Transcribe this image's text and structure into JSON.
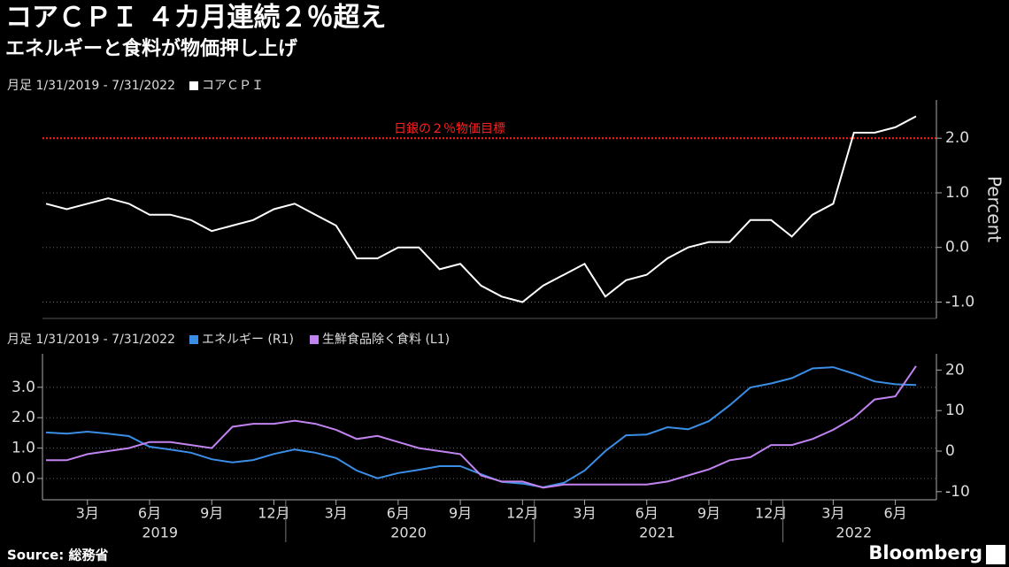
{
  "title": "コアＣＰＩ ４カ月連続２％超え",
  "subtitle": "エネルギーと食料が物価押し上げ",
  "source": "Source: 総務省",
  "brand": "Bloomberg",
  "chart_data": [
    {
      "type": "line",
      "range_label": "月足 1/31/2019 - 7/31/2022",
      "ylabel": "Percent",
      "x": [
        "2019-01",
        "2019-02",
        "2019-03",
        "2019-04",
        "2019-05",
        "2019-06",
        "2019-07",
        "2019-08",
        "2019-09",
        "2019-10",
        "2019-11",
        "2019-12",
        "2020-01",
        "2020-02",
        "2020-03",
        "2020-04",
        "2020-05",
        "2020-06",
        "2020-07",
        "2020-08",
        "2020-09",
        "2020-10",
        "2020-11",
        "2020-12",
        "2021-01",
        "2021-02",
        "2021-03",
        "2021-04",
        "2021-05",
        "2021-06",
        "2021-07",
        "2021-08",
        "2021-09",
        "2021-10",
        "2021-11",
        "2021-12",
        "2022-01",
        "2022-02",
        "2022-03",
        "2022-04",
        "2022-05",
        "2022-06",
        "2022-07"
      ],
      "series": [
        {
          "name": "コアＣＰＩ",
          "color": "#ffffff",
          "values": [
            0.8,
            0.7,
            0.8,
            0.9,
            0.8,
            0.6,
            0.6,
            0.5,
            0.3,
            0.4,
            0.5,
            0.7,
            0.8,
            0.6,
            0.4,
            -0.2,
            -0.2,
            0.0,
            0.0,
            -0.4,
            -0.3,
            -0.7,
            -0.9,
            -1.0,
            -0.7,
            -0.5,
            -0.3,
            -0.9,
            -0.6,
            -0.5,
            -0.2,
            0.0,
            0.1,
            0.1,
            0.5,
            0.5,
            0.2,
            0.6,
            0.8,
            2.1,
            2.1,
            2.2,
            2.4
          ]
        }
      ],
      "y2lim": [
        -1.3,
        2.7
      ],
      "y2ticks": [
        {
          "value": 2,
          "label": "2.0"
        },
        {
          "value": 1,
          "label": "1.0"
        },
        {
          "value": 0,
          "label": "0.0"
        },
        {
          "value": -1,
          "label": "-1.0"
        }
      ],
      "grid": true,
      "target": {
        "value": 2,
        "label": "日銀の２％物価目標",
        "color": "#ff2020"
      }
    },
    {
      "type": "line",
      "range_label": "月足 1/31/2019 - 7/31/2022",
      "x": [
        "2019-01",
        "2019-02",
        "2019-03",
        "2019-04",
        "2019-05",
        "2019-06",
        "2019-07",
        "2019-08",
        "2019-09",
        "2019-10",
        "2019-11",
        "2019-12",
        "2020-01",
        "2020-02",
        "2020-03",
        "2020-04",
        "2020-05",
        "2020-06",
        "2020-07",
        "2020-08",
        "2020-09",
        "2020-10",
        "2020-11",
        "2020-12",
        "2021-01",
        "2021-02",
        "2021-03",
        "2021-04",
        "2021-05",
        "2021-06",
        "2021-07",
        "2021-08",
        "2021-09",
        "2021-10",
        "2021-11",
        "2021-12",
        "2022-01",
        "2022-02",
        "2022-03",
        "2022-04",
        "2022-05",
        "2022-06",
        "2022-07"
      ],
      "series": [
        {
          "name": "エネルギー (R1)",
          "color": "#3a8ee6",
          "axis": "y2",
          "values": [
            4.6,
            4.3,
            4.8,
            4.3,
            3.7,
            1.1,
            0.4,
            -0.4,
            -2.0,
            -2.8,
            -2.2,
            -0.7,
            0.4,
            -0.4,
            -1.7,
            -4.8,
            -6.7,
            -5.4,
            -4.6,
            -3.7,
            -3.7,
            -5.7,
            -7.6,
            -8.0,
            -8.9,
            -7.8,
            -4.8,
            0.0,
            3.9,
            4.1,
            5.9,
            5.4,
            7.4,
            11.3,
            15.7,
            16.7,
            18.0,
            20.4,
            20.7,
            19.1,
            17.2,
            16.5,
            16.3
          ]
        },
        {
          "name": "生鮮食品除く食料 (L1)",
          "color": "#c183f0",
          "values": [
            0.6,
            0.6,
            0.8,
            0.9,
            1.0,
            1.2,
            1.2,
            1.1,
            1.0,
            1.7,
            1.8,
            1.8,
            1.9,
            1.8,
            1.6,
            1.3,
            1.4,
            1.2,
            1.0,
            0.9,
            0.8,
            0.1,
            -0.1,
            -0.1,
            -0.3,
            -0.2,
            -0.2,
            -0.2,
            -0.2,
            -0.2,
            -0.1,
            0.1,
            0.3,
            0.6,
            0.7,
            1.1,
            1.1,
            1.3,
            1.6,
            2.0,
            2.6,
            2.7,
            3.7
          ]
        }
      ],
      "ylim": [
        -0.7,
        4.1
      ],
      "yticks": [
        {
          "value": 3,
          "label": "3.0"
        },
        {
          "value": 2,
          "label": "2.0"
        },
        {
          "value": 1,
          "label": "1.0"
        },
        {
          "value": 0,
          "label": "0.0"
        }
      ],
      "y2lim": [
        -12,
        24
      ],
      "y2ticks": [
        20,
        10,
        0,
        -10
      ],
      "grid": true,
      "xticks": [
        {
          "value": "2019-03",
          "label": "3月"
        },
        {
          "value": "2019-06",
          "label": "6月"
        },
        {
          "value": "2019-09",
          "label": "9月"
        },
        {
          "value": "2019-12",
          "label": "12月"
        },
        {
          "value": "2020-03",
          "label": "3月"
        },
        {
          "value": "2020-06",
          "label": "6月"
        },
        {
          "value": "2020-09",
          "label": "9月"
        },
        {
          "value": "2020-12",
          "label": "12月"
        },
        {
          "value": "2021-03",
          "label": "3月"
        },
        {
          "value": "2021-06",
          "label": "6月"
        },
        {
          "value": "2021-09",
          "label": "9月"
        },
        {
          "value": "2021-12",
          "label": "12月"
        },
        {
          "value": "2022-03",
          "label": "3月"
        },
        {
          "value": "2022-06",
          "label": "6月"
        }
      ],
      "years": [
        "2019",
        "2020",
        "2021",
        "2022"
      ]
    }
  ]
}
